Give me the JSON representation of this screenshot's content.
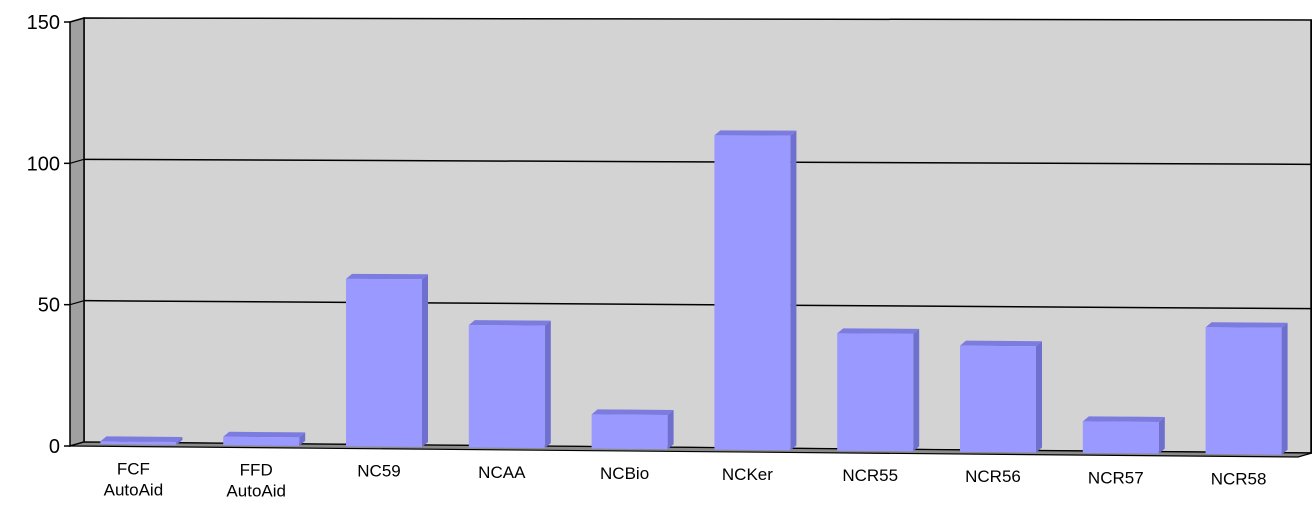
{
  "chart_data": {
    "type": "bar",
    "title": "",
    "xlabel": "",
    "ylabel": "",
    "ylim": [
      0,
      150
    ],
    "yticks": [
      0,
      50,
      100,
      150
    ],
    "grid": true,
    "categories": [
      [
        "FCF",
        "AutoAid"
      ],
      [
        "FFD",
        "AutoAid"
      ],
      [
        "NC59"
      ],
      [
        "NCAA"
      ],
      [
        "NCBio"
      ],
      [
        "NCKer"
      ],
      [
        "NCR55"
      ],
      [
        "NCR56"
      ],
      [
        "NCR57"
      ],
      [
        "NCR58"
      ]
    ],
    "values": [
      1,
      3,
      59,
      43,
      12,
      110,
      41,
      37,
      11,
      44
    ],
    "colors": {
      "bar_front": "#9999ff",
      "bar_side": "#6f6fcf",
      "bar_top": "#7b7be0",
      "plot_back": "#d3d3d3",
      "side_wall": "#a0a0a0",
      "floor": "#8a8a8a",
      "grid": "#000000"
    }
  }
}
